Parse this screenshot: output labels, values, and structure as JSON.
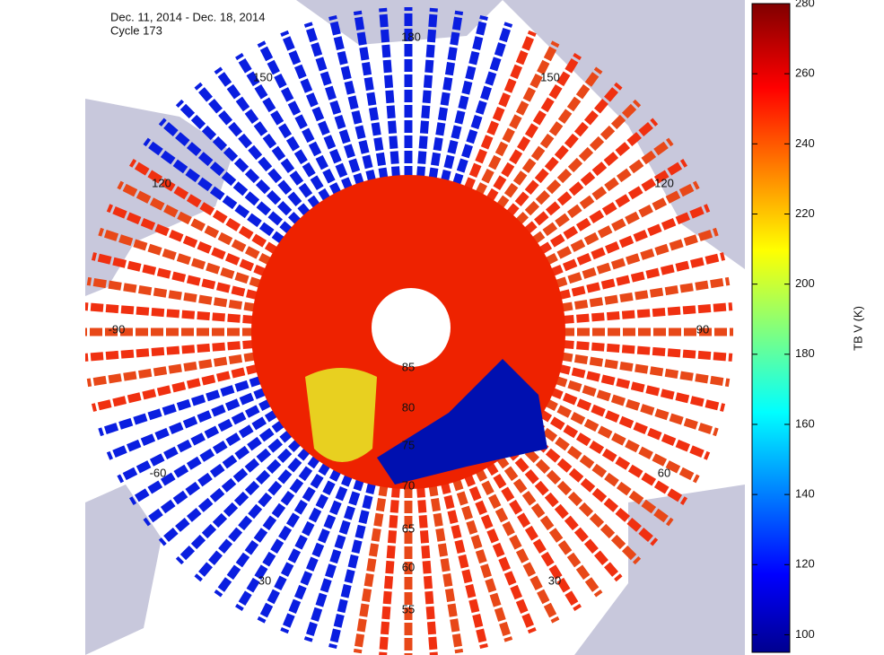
{
  "title": "Dec. 11, 2014 - Dec. 18, 2014",
  "subtitle": "Cycle 173",
  "colorbar": {
    "label": "TB V (K)",
    "lim": [
      95,
      280
    ],
    "ticks": [
      100,
      120,
      140,
      160,
      180,
      200,
      220,
      240,
      260,
      280
    ]
  },
  "longitude_labels": [
    "180",
    "150",
    "150",
    "120",
    "120",
    "-90",
    "90",
    "-60",
    "60",
    "30",
    "30"
  ],
  "latitude_labels": [
    "85",
    "80",
    "75",
    "70",
    "65",
    "60",
    "55"
  ]
}
